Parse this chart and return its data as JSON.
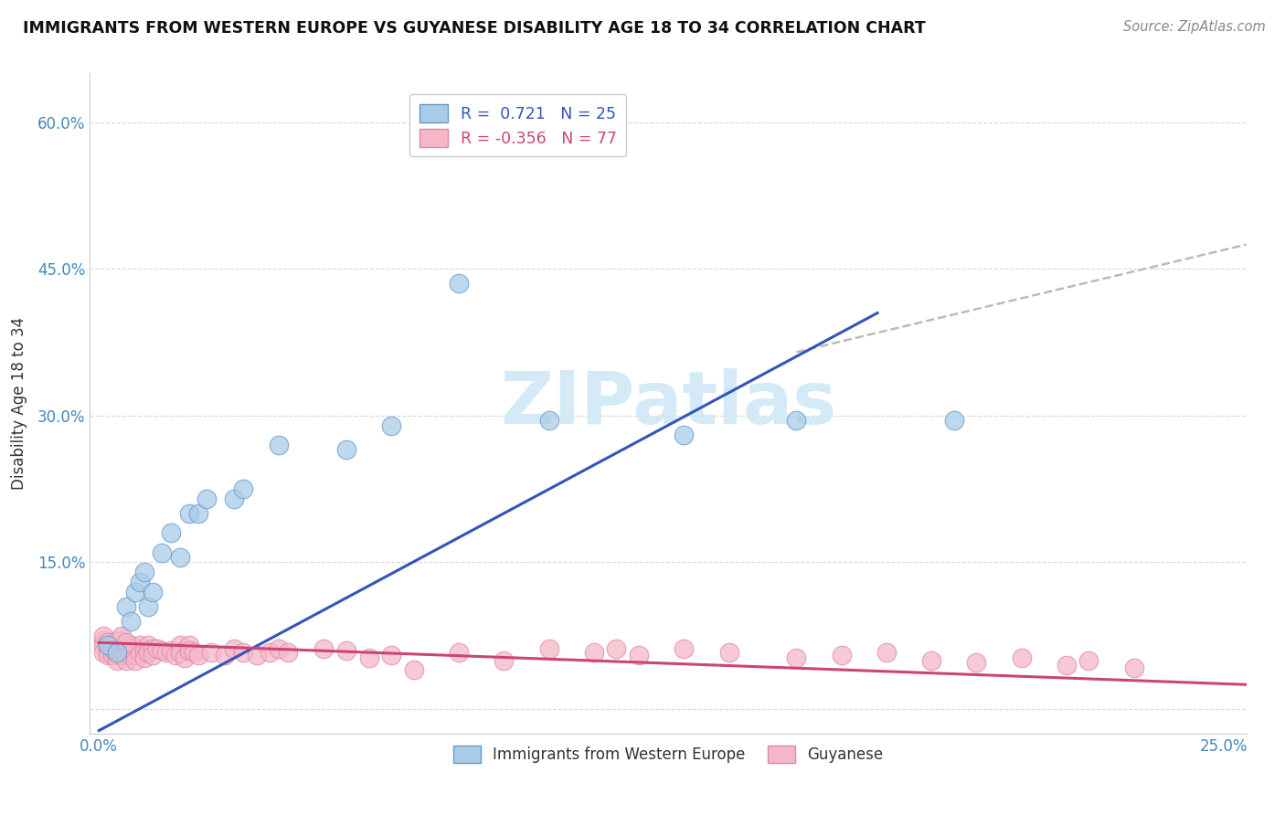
{
  "title": "IMMIGRANTS FROM WESTERN EUROPE VS GUYANESE DISABILITY AGE 18 TO 34 CORRELATION CHART",
  "source": "Source: ZipAtlas.com",
  "ylabel": "Disability Age 18 to 34",
  "xlabel": "",
  "xlim": [
    -0.002,
    0.255
  ],
  "ylim": [
    -0.025,
    0.65
  ],
  "ytick_vals": [
    0.0,
    0.15,
    0.3,
    0.45,
    0.6
  ],
  "ytick_labels": [
    "",
    "15.0%",
    "30.0%",
    "45.0%",
    "60.0%"
  ],
  "xtick_vals": [
    0.0,
    0.25
  ],
  "xtick_labels": [
    "0.0%",
    "25.0%"
  ],
  "background_color": "#ffffff",
  "grid_color": "#d0d0d0",
  "blue_color": "#a8cce8",
  "blue_edge_color": "#6699cc",
  "blue_line_color": "#3355bb",
  "pink_color": "#f5b8c8",
  "pink_edge_color": "#dd88aa",
  "pink_line_color": "#cc4477",
  "dash_color": "#bbbbbb",
  "watermark_color": "#d0e8f5",
  "watermark": "ZIPatlas",
  "blue_line_x": [
    0.0,
    0.173
  ],
  "blue_line_y": [
    -0.022,
    0.405
  ],
  "dash_line_x": [
    0.155,
    0.255
  ],
  "dash_line_y": [
    0.365,
    0.475
  ],
  "pink_line_x": [
    0.0,
    0.255
  ],
  "pink_line_y": [
    0.068,
    0.025
  ],
  "blue_scatter_x": [
    0.002,
    0.004,
    0.006,
    0.007,
    0.008,
    0.009,
    0.01,
    0.011,
    0.012,
    0.014,
    0.016,
    0.018,
    0.02,
    0.022,
    0.024,
    0.03,
    0.032,
    0.04,
    0.055,
    0.065,
    0.08,
    0.1,
    0.13,
    0.155,
    0.19
  ],
  "blue_scatter_y": [
    0.065,
    0.058,
    0.105,
    0.09,
    0.12,
    0.13,
    0.14,
    0.105,
    0.12,
    0.16,
    0.18,
    0.155,
    0.2,
    0.2,
    0.215,
    0.215,
    0.225,
    0.27,
    0.265,
    0.29,
    0.435,
    0.295,
    0.28,
    0.295,
    0.295
  ],
  "pink_scatter_x": [
    0.001,
    0.001,
    0.001,
    0.002,
    0.002,
    0.002,
    0.003,
    0.003,
    0.004,
    0.004,
    0.004,
    0.005,
    0.005,
    0.005,
    0.006,
    0.006,
    0.007,
    0.007,
    0.008,
    0.008,
    0.008,
    0.009,
    0.009,
    0.01,
    0.01,
    0.011,
    0.011,
    0.012,
    0.012,
    0.013,
    0.014,
    0.015,
    0.016,
    0.017,
    0.018,
    0.018,
    0.019,
    0.02,
    0.02,
    0.021,
    0.022,
    0.025,
    0.028,
    0.03,
    0.032,
    0.035,
    0.038,
    0.04,
    0.042,
    0.05,
    0.055,
    0.06,
    0.065,
    0.07,
    0.08,
    0.09,
    0.1,
    0.11,
    0.115,
    0.12,
    0.13,
    0.14,
    0.155,
    0.165,
    0.175,
    0.185,
    0.195,
    0.205,
    0.215,
    0.22,
    0.23,
    0.001,
    0.002,
    0.003,
    0.004,
    0.005,
    0.006
  ],
  "pink_scatter_y": [
    0.07,
    0.065,
    0.058,
    0.065,
    0.06,
    0.055,
    0.068,
    0.055,
    0.06,
    0.055,
    0.05,
    0.07,
    0.06,
    0.055,
    0.058,
    0.05,
    0.065,
    0.055,
    0.062,
    0.055,
    0.05,
    0.065,
    0.058,
    0.06,
    0.052,
    0.065,
    0.058,
    0.062,
    0.055,
    0.062,
    0.06,
    0.058,
    0.06,
    0.055,
    0.065,
    0.058,
    0.052,
    0.065,
    0.06,
    0.058,
    0.055,
    0.058,
    0.055,
    0.062,
    0.058,
    0.055,
    0.058,
    0.062,
    0.058,
    0.062,
    0.06,
    0.052,
    0.055,
    0.04,
    0.058,
    0.05,
    0.062,
    0.058,
    0.062,
    0.055,
    0.062,
    0.058,
    0.052,
    0.055,
    0.058,
    0.05,
    0.048,
    0.052,
    0.045,
    0.05,
    0.042,
    0.075,
    0.068,
    0.062,
    0.07,
    0.075,
    0.068
  ]
}
